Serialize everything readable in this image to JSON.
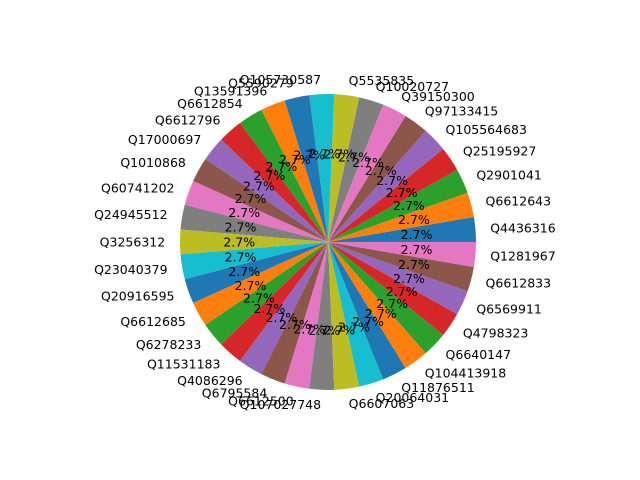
{
  "chart_data": {
    "type": "pie",
    "categories": [
      "Q4436316",
      "Q6612643",
      "Q2901041",
      "Q25195927",
      "Q105564683",
      "Q97133415",
      "Q39150300",
      "Q10020727",
      "Q5535835",
      "Q105730587",
      "Q5590279",
      "Q13591396",
      "Q6612854",
      "Q6612796",
      "Q17000697",
      "Q1010868",
      "Q60741202",
      "Q24945512",
      "Q3256312",
      "Q23040379",
      "Q20916595",
      "Q6612685",
      "Q6278233",
      "Q11531183",
      "Q4086296",
      "Q6795584",
      "Q6612500",
      "Q107027748",
      "Q6607063",
      "Q20064031",
      "Q11876511",
      "Q104413918",
      "Q6640147",
      "Q4798323",
      "Q6569911",
      "Q6612833",
      "Q1281967"
    ],
    "values": [
      1,
      1,
      1,
      1,
      1,
      1,
      1,
      1,
      1,
      1,
      1,
      1,
      1,
      1,
      1,
      1,
      1,
      1,
      1,
      1,
      1,
      1,
      1,
      1,
      1,
      1,
      1,
      1,
      1,
      1,
      1,
      1,
      1,
      1,
      1,
      1,
      1
    ],
    "percent_labels": [
      "2.7%",
      "2.7%",
      "2.7%",
      "2.7%",
      "2.7%",
      "2.7%",
      "2.7%",
      "2.7%",
      "2.7%",
      "2.7%",
      "2.7%",
      "2.7%",
      "2.7%",
      "2.7%",
      "2.7%",
      "2.7%",
      "2.7%",
      "2.7%",
      "2.7%",
      "2.7%",
      "2.7%",
      "2.7%",
      "2.7%",
      "2.7%",
      "2.7%",
      "2.7%",
      "2.7%",
      "2.7%",
      "2.7%",
      "2.7%",
      "2.7%",
      "2.7%",
      "2.7%",
      "2.7%",
      "2.7%",
      "2.7%",
      "2.7%"
    ],
    "colors": [
      "#1f77b4",
      "#ff7f0e",
      "#2ca02c",
      "#d62728",
      "#9467bd",
      "#8c564b",
      "#e377c2",
      "#7f7f7f",
      "#bcbd22",
      "#17becf"
    ],
    "start_angle_deg": 0,
    "direction": "counterclockwise"
  }
}
